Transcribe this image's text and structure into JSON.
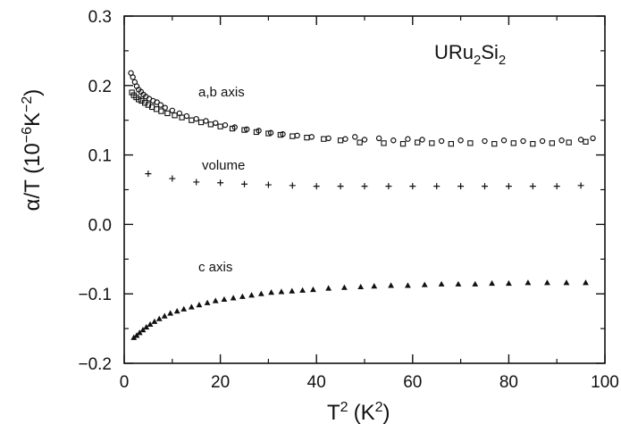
{
  "chart_data": {
    "type": "scatter",
    "title": "URu2Si2",
    "title_parts": {
      "u": "URu",
      "s2": "2",
      "si": "Si",
      "s2b": "2"
    },
    "xlabel": "T² (K²)",
    "xlabel_parts": {
      "t": "T",
      "sup": "2",
      "open": "(K",
      "sup2": "2",
      "close": ")"
    },
    "ylabel": "α/T (10⁻⁶K⁻²)",
    "ylabel_parts": {
      "a": "α/T (10",
      "sup": "−6",
      "b": "K",
      "sup2": "−2",
      "c": ")"
    },
    "xlim": [
      0,
      100
    ],
    "ylim": [
      -0.2,
      0.3
    ],
    "x_ticks": [
      "0",
      "20",
      "40",
      "60",
      "80",
      "100"
    ],
    "y_ticks": [
      "−0.2",
      "−0.1",
      "0.0",
      "0.1",
      "0.2",
      "0.3"
    ],
    "grid": false,
    "colors": {
      "ink": "#111111",
      "background": "#ffffff"
    },
    "series": [
      {
        "name": "a,b axis",
        "label": "a,b axis",
        "marker": "circle",
        "x": [
          1.4,
          1.8,
          2.2,
          2.6,
          3.0,
          3.5,
          4.0,
          4.5,
          5.2,
          6.0,
          6.8,
          7.6,
          8.5,
          10.0,
          11.5,
          13.0,
          15.0,
          17.0,
          19.0,
          21.0,
          23.0,
          25.5,
          28.0,
          30.5,
          33.0,
          36.0,
          39.0,
          42.5,
          46.0,
          48.0,
          50.0,
          53.0,
          56.0,
          59.0,
          62.0,
          66.0,
          70.0,
          75.0,
          79.0,
          83.0,
          87.0,
          91.0,
          95.0,
          97.5
        ],
        "y": [
          0.218,
          0.212,
          0.205,
          0.199,
          0.194,
          0.191,
          0.187,
          0.184,
          0.181,
          0.178,
          0.176,
          0.172,
          0.168,
          0.164,
          0.16,
          0.156,
          0.152,
          0.149,
          0.146,
          0.143,
          0.14,
          0.137,
          0.135,
          0.132,
          0.13,
          0.128,
          0.126,
          0.124,
          0.123,
          0.126,
          0.122,
          0.124,
          0.121,
          0.123,
          0.122,
          0.12,
          0.121,
          0.12,
          0.121,
          0.12,
          0.12,
          0.121,
          0.122,
          0.124
        ]
      },
      {
        "name": "a,b axis",
        "label": "",
        "marker": "square",
        "x": [
          1.6,
          2.0,
          2.5,
          3.0,
          3.6,
          4.3,
          5.0,
          5.8,
          6.7,
          7.7,
          9.0,
          10.5,
          12.0,
          14.0,
          16.0,
          18.0,
          20.0,
          22.5,
          25.0,
          27.5,
          30.0,
          32.5,
          35.0,
          38.0,
          41.5,
          45.0,
          49.0,
          54.0,
          58.0,
          61.0,
          64.0,
          68.0,
          72.0,
          77.0,
          81.0,
          85.0,
          89.0,
          92.5,
          96.0
        ],
        "y": [
          0.19,
          0.186,
          0.183,
          0.18,
          0.178,
          0.175,
          0.172,
          0.169,
          0.166,
          0.163,
          0.16,
          0.157,
          0.154,
          0.15,
          0.147,
          0.144,
          0.141,
          0.138,
          0.136,
          0.133,
          0.131,
          0.129,
          0.127,
          0.125,
          0.123,
          0.121,
          0.118,
          0.117,
          0.116,
          0.118,
          0.117,
          0.116,
          0.117,
          0.116,
          0.117,
          0.116,
          0.117,
          0.118,
          0.119
        ]
      },
      {
        "name": "volume",
        "label": "volume",
        "marker": "plus",
        "x": [
          5,
          10,
          15,
          20,
          25,
          30,
          35,
          40,
          45,
          50,
          55,
          60,
          65,
          70,
          75,
          80,
          85,
          90,
          95
        ],
        "y": [
          0.073,
          0.066,
          0.061,
          0.06,
          0.058,
          0.057,
          0.056,
          0.055,
          0.055,
          0.055,
          0.055,
          0.055,
          0.055,
          0.055,
          0.055,
          0.055,
          0.055,
          0.055,
          0.056
        ]
      },
      {
        "name": "c axis",
        "label": "c axis",
        "marker": "triangle",
        "x": [
          2.0,
          2.6,
          3.2,
          3.9,
          4.6,
          5.4,
          6.3,
          7.3,
          8.4,
          9.6,
          11.0,
          12.4,
          14.0,
          15.6,
          17.3,
          19.0,
          20.8,
          22.7,
          24.6,
          26.5,
          28.5,
          30.6,
          32.7,
          34.9,
          37.1,
          39.3,
          42.5,
          45.8,
          49.2,
          52.0,
          55.5,
          59.0,
          62.5,
          66.0,
          69.5,
          73.0,
          76.5,
          80.0,
          84.0,
          88.0,
          92.0,
          96.0
        ],
        "y": [
          -0.163,
          -0.16,
          -0.156,
          -0.152,
          -0.148,
          -0.144,
          -0.14,
          -0.136,
          -0.132,
          -0.128,
          -0.125,
          -0.122,
          -0.119,
          -0.116,
          -0.113,
          -0.11,
          -0.108,
          -0.106,
          -0.104,
          -0.102,
          -0.1,
          -0.098,
          -0.097,
          -0.096,
          -0.095,
          -0.094,
          -0.092,
          -0.091,
          -0.09,
          -0.089,
          -0.088,
          -0.088,
          -0.087,
          -0.086,
          -0.086,
          -0.086,
          -0.085,
          -0.085,
          -0.084,
          -0.084,
          -0.084,
          -0.084
        ]
      }
    ]
  }
}
